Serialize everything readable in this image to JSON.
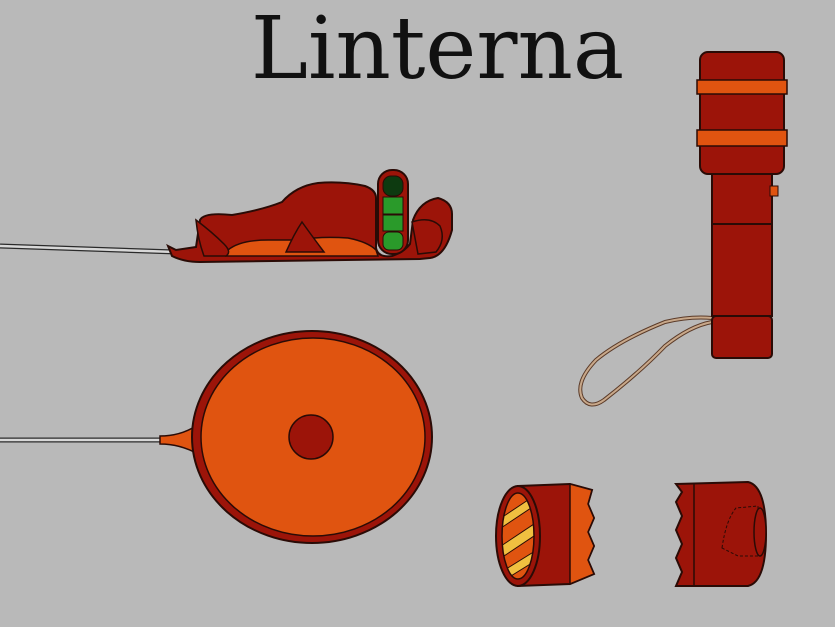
{
  "title": "Linterna",
  "colors": {
    "background": "#b9b9b9",
    "body_red": "#9c1409",
    "orange": "#e05410",
    "bright_orange": "#f47a1a",
    "green": "#2a9a2a",
    "dark_green": "#0d3a10",
    "yellow": "#f0c040",
    "outline": "#2a0b06",
    "wire": "#d8d8d8"
  }
}
